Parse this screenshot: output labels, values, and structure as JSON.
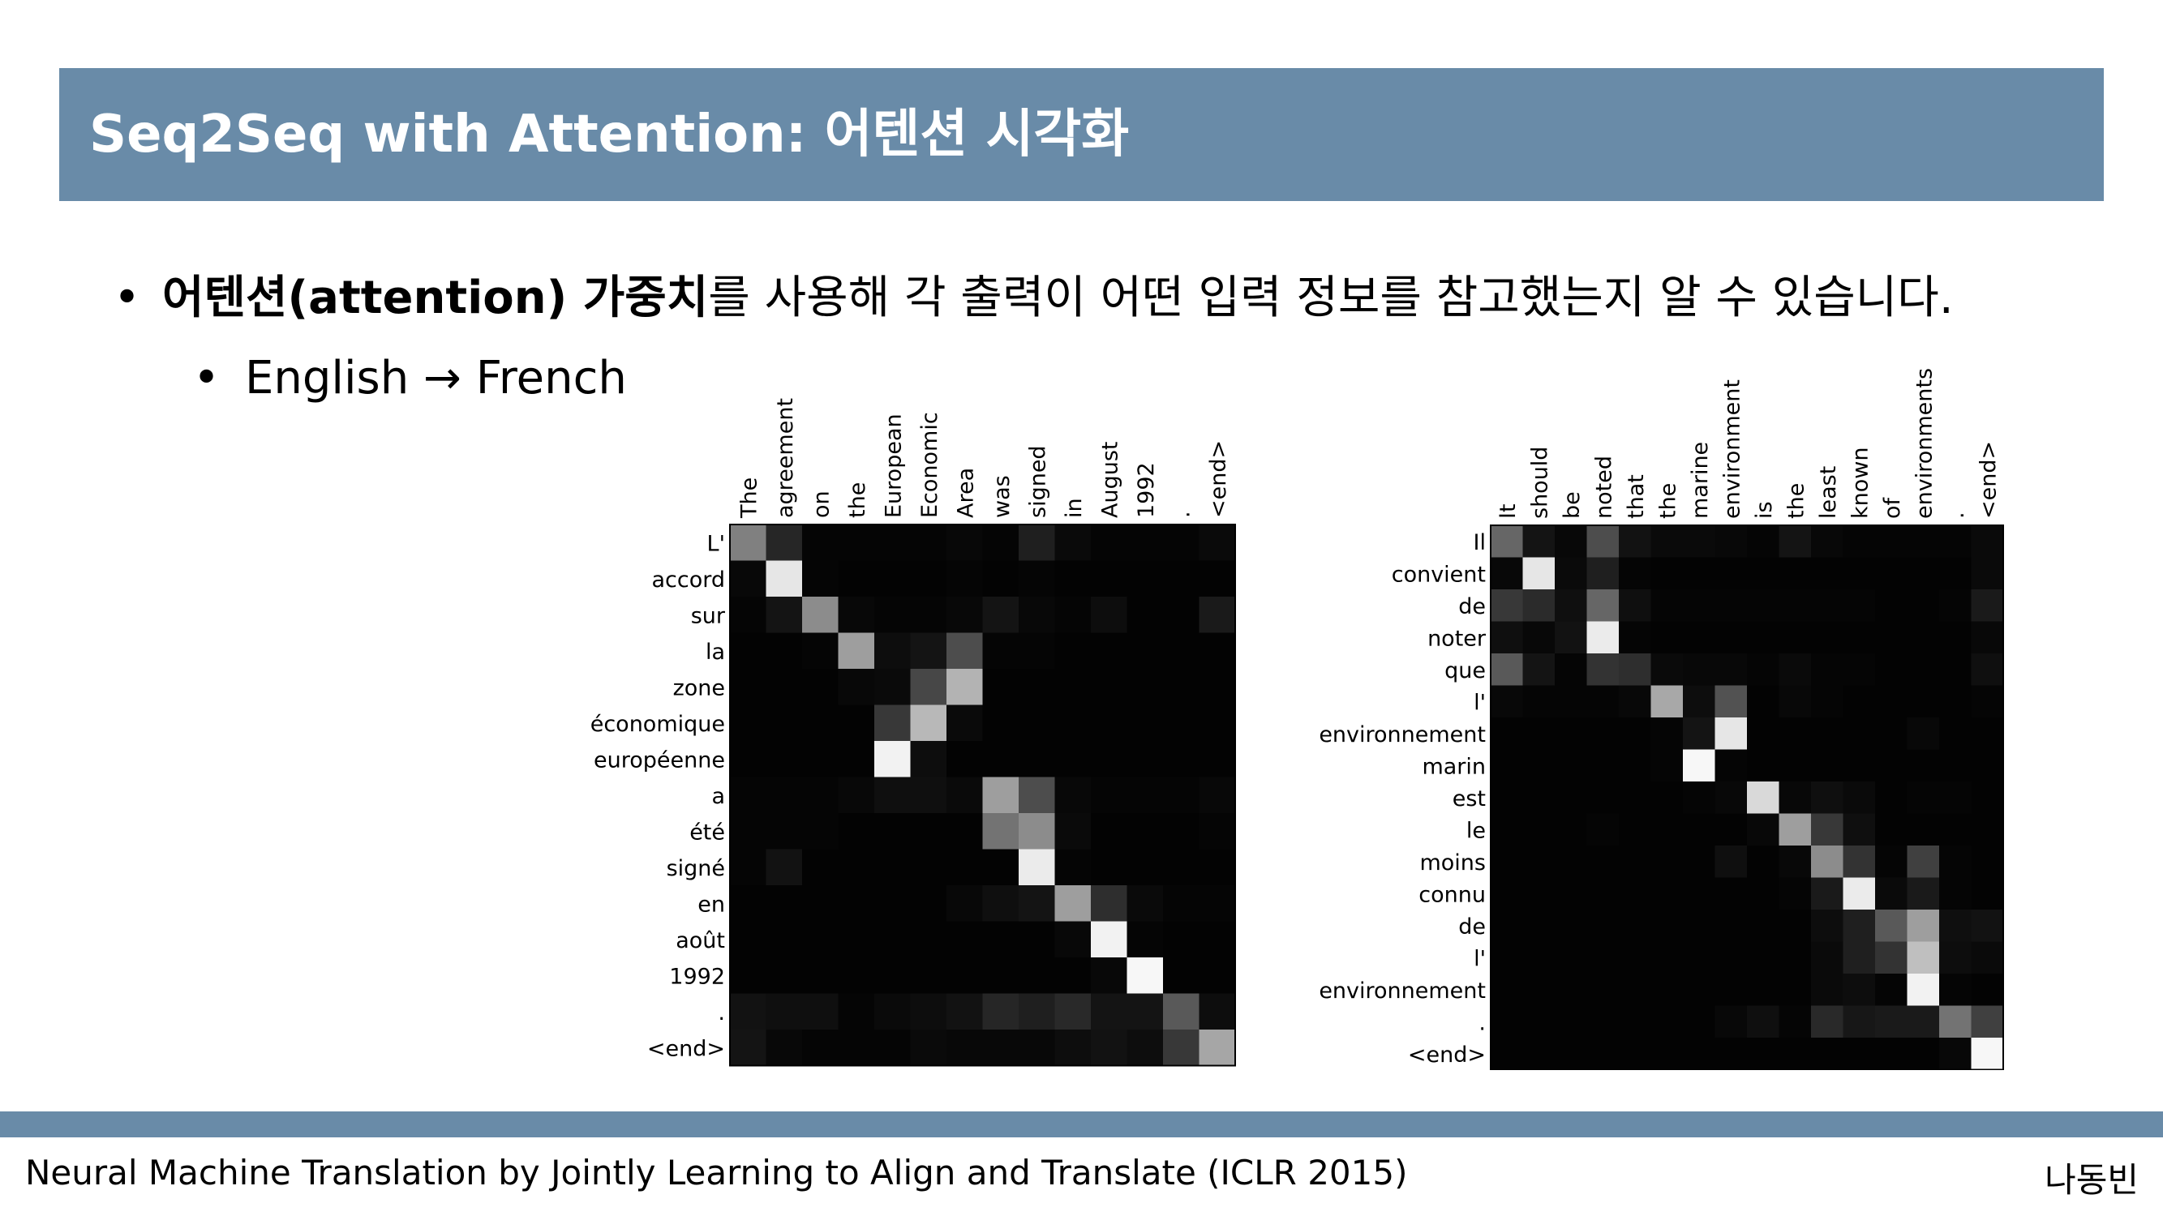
{
  "slide": {
    "title": "Seq2Seq with Attention: 어텐션 시각화",
    "bullet1_bold": "어텐션(attention) 가중치",
    "bullet1_rest": "를 사용해 각 출력이 어떤 입력 정보를 참고했는지 알 수 있습니다.",
    "bullet2": "English → French",
    "bullet_symbol": "•",
    "footer_citation": "Neural Machine Translation by Jointly Learning to Align and Translate (ICLR 2015)",
    "footer_author": "나동빈"
  },
  "chart_data": [
    {
      "type": "heatmap",
      "x_labels": [
        "The",
        "agreement",
        "on",
        "the",
        "European",
        "Economic",
        "Area",
        "was",
        "signed",
        "in",
        "August",
        "1992",
        ".",
        "<end>"
      ],
      "y_labels": [
        "L'",
        "accord",
        "sur",
        "la",
        "zone",
        "économique",
        "européenne",
        "a",
        "été",
        "signé",
        "en",
        "août",
        "1992",
        ".",
        "<end>"
      ],
      "values": [
        [
          0.5,
          0.15,
          0.02,
          0.02,
          0.02,
          0.02,
          0.03,
          0.02,
          0.12,
          0.04,
          0.02,
          0.02,
          0.02,
          0.04
        ],
        [
          0.03,
          0.9,
          0.02,
          0.01,
          0.01,
          0.01,
          0.02,
          0.01,
          0.02,
          0.01,
          0.01,
          0.01,
          0.01,
          0.01
        ],
        [
          0.02,
          0.08,
          0.55,
          0.03,
          0.02,
          0.02,
          0.03,
          0.08,
          0.03,
          0.02,
          0.05,
          0.01,
          0.01,
          0.1
        ],
        [
          0.01,
          0.01,
          0.02,
          0.62,
          0.05,
          0.08,
          0.3,
          0.02,
          0.02,
          0.01,
          0.01,
          0.01,
          0.01,
          0.01
        ],
        [
          0.01,
          0.01,
          0.01,
          0.03,
          0.04,
          0.28,
          0.7,
          0.01,
          0.01,
          0.01,
          0.01,
          0.01,
          0.01,
          0.01
        ],
        [
          0.01,
          0.01,
          0.01,
          0.01,
          0.22,
          0.72,
          0.04,
          0.01,
          0.01,
          0.01,
          0.01,
          0.01,
          0.01,
          0.01
        ],
        [
          0.01,
          0.01,
          0.01,
          0.01,
          0.95,
          0.05,
          0.01,
          0.01,
          0.01,
          0.01,
          0.01,
          0.01,
          0.01,
          0.01
        ],
        [
          0.02,
          0.02,
          0.02,
          0.03,
          0.06,
          0.06,
          0.04,
          0.62,
          0.3,
          0.03,
          0.02,
          0.02,
          0.02,
          0.03
        ],
        [
          0.02,
          0.02,
          0.02,
          0.01,
          0.01,
          0.01,
          0.01,
          0.45,
          0.55,
          0.04,
          0.01,
          0.01,
          0.01,
          0.02
        ],
        [
          0.02,
          0.07,
          0.01,
          0.01,
          0.01,
          0.01,
          0.01,
          0.01,
          0.92,
          0.02,
          0.01,
          0.01,
          0.01,
          0.01
        ],
        [
          0.01,
          0.01,
          0.01,
          0.01,
          0.01,
          0.01,
          0.03,
          0.06,
          0.08,
          0.62,
          0.18,
          0.04,
          0.02,
          0.02
        ],
        [
          0.01,
          0.01,
          0.01,
          0.01,
          0.01,
          0.01,
          0.01,
          0.01,
          0.01,
          0.03,
          0.95,
          0.02,
          0.01,
          0.01
        ],
        [
          0.01,
          0.01,
          0.01,
          0.01,
          0.01,
          0.01,
          0.01,
          0.01,
          0.01,
          0.01,
          0.03,
          0.97,
          0.01,
          0.01
        ],
        [
          0.07,
          0.06,
          0.06,
          0.02,
          0.04,
          0.05,
          0.07,
          0.15,
          0.12,
          0.16,
          0.08,
          0.08,
          0.35,
          0.05
        ],
        [
          0.08,
          0.03,
          0.02,
          0.02,
          0.02,
          0.04,
          0.03,
          0.03,
          0.03,
          0.05,
          0.07,
          0.05,
          0.22,
          0.65
        ]
      ]
    },
    {
      "type": "heatmap",
      "x_labels": [
        "It",
        "should",
        "be",
        "noted",
        "that",
        "the",
        "marine",
        "environment",
        "is",
        "the",
        "least",
        "known",
        "of",
        "environments",
        ".",
        "<end>"
      ],
      "y_labels": [
        "Il",
        "convient",
        "de",
        "noter",
        "que",
        "l'",
        "environnement",
        "marin",
        "est",
        "le",
        "moins",
        "connu",
        "de",
        "l'",
        "environnement",
        ".",
        "<end>"
      ],
      "values": [
        [
          0.4,
          0.08,
          0.03,
          0.3,
          0.07,
          0.04,
          0.04,
          0.03,
          0.02,
          0.08,
          0.03,
          0.02,
          0.02,
          0.02,
          0.02,
          0.04
        ],
        [
          0.03,
          0.9,
          0.04,
          0.12,
          0.02,
          0.01,
          0.01,
          0.01,
          0.01,
          0.01,
          0.01,
          0.01,
          0.01,
          0.01,
          0.01,
          0.04
        ],
        [
          0.22,
          0.17,
          0.06,
          0.4,
          0.06,
          0.02,
          0.02,
          0.02,
          0.02,
          0.02,
          0.02,
          0.02,
          0.01,
          0.01,
          0.02,
          0.1
        ],
        [
          0.06,
          0.03,
          0.07,
          0.92,
          0.02,
          0.01,
          0.01,
          0.01,
          0.01,
          0.01,
          0.01,
          0.01,
          0.01,
          0.01,
          0.01,
          0.03
        ],
        [
          0.35,
          0.08,
          0.02,
          0.2,
          0.18,
          0.04,
          0.03,
          0.03,
          0.02,
          0.04,
          0.02,
          0.02,
          0.01,
          0.01,
          0.01,
          0.06
        ],
        [
          0.03,
          0.02,
          0.02,
          0.02,
          0.03,
          0.66,
          0.05,
          0.32,
          0.01,
          0.03,
          0.02,
          0.01,
          0.01,
          0.01,
          0.01,
          0.02
        ],
        [
          0.01,
          0.01,
          0.01,
          0.01,
          0.01,
          0.02,
          0.08,
          0.9,
          0.01,
          0.01,
          0.01,
          0.01,
          0.01,
          0.03,
          0.01,
          0.01
        ],
        [
          0.01,
          0.01,
          0.01,
          0.01,
          0.01,
          0.02,
          0.97,
          0.02,
          0.01,
          0.01,
          0.01,
          0.01,
          0.01,
          0.01,
          0.01,
          0.01
        ],
        [
          0.01,
          0.01,
          0.01,
          0.01,
          0.01,
          0.01,
          0.02,
          0.03,
          0.85,
          0.03,
          0.06,
          0.04,
          0.01,
          0.02,
          0.02,
          0.01
        ],
        [
          0.01,
          0.01,
          0.01,
          0.02,
          0.01,
          0.01,
          0.01,
          0.01,
          0.03,
          0.62,
          0.22,
          0.06,
          0.01,
          0.01,
          0.01,
          0.01
        ],
        [
          0.01,
          0.01,
          0.01,
          0.01,
          0.01,
          0.01,
          0.01,
          0.06,
          0.01,
          0.03,
          0.55,
          0.2,
          0.02,
          0.25,
          0.02,
          0.01
        ],
        [
          0.01,
          0.01,
          0.01,
          0.01,
          0.01,
          0.01,
          0.01,
          0.01,
          0.01,
          0.02,
          0.1,
          0.92,
          0.04,
          0.1,
          0.02,
          0.01
        ],
        [
          0.01,
          0.01,
          0.01,
          0.01,
          0.01,
          0.01,
          0.01,
          0.01,
          0.01,
          0.01,
          0.05,
          0.12,
          0.35,
          0.62,
          0.06,
          0.07
        ],
        [
          0.01,
          0.01,
          0.01,
          0.01,
          0.01,
          0.01,
          0.01,
          0.01,
          0.01,
          0.01,
          0.04,
          0.12,
          0.2,
          0.75,
          0.05,
          0.04
        ],
        [
          0.01,
          0.01,
          0.01,
          0.01,
          0.01,
          0.01,
          0.01,
          0.01,
          0.01,
          0.01,
          0.04,
          0.05,
          0.02,
          0.95,
          0.02,
          0.01
        ],
        [
          0.01,
          0.01,
          0.01,
          0.01,
          0.01,
          0.01,
          0.01,
          0.03,
          0.06,
          0.02,
          0.16,
          0.09,
          0.1,
          0.1,
          0.45,
          0.25
        ],
        [
          0.01,
          0.01,
          0.01,
          0.01,
          0.01,
          0.01,
          0.01,
          0.01,
          0.01,
          0.01,
          0.01,
          0.01,
          0.01,
          0.01,
          0.03,
          0.97
        ]
      ]
    }
  ]
}
